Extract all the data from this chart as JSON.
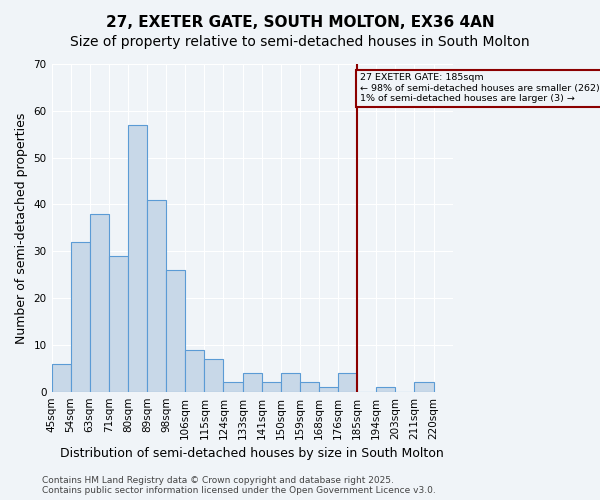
{
  "title": "27, EXETER GATE, SOUTH MOLTON, EX36 4AN",
  "subtitle": "Size of property relative to semi-detached houses in South Molton",
  "xlabel": "Distribution of semi-detached houses by size in South Molton",
  "ylabel": "Number of semi-detached properties",
  "footnote": "Contains HM Land Registry data © Crown copyright and database right 2025.\nContains public sector information licensed under the Open Government Licence v3.0.",
  "bin_labels": [
    "45sqm",
    "54sqm",
    "63sqm",
    "71sqm",
    "80sqm",
    "89sqm",
    "98sqm",
    "106sqm",
    "115sqm",
    "124sqm",
    "133sqm",
    "141sqm",
    "150sqm",
    "159sqm",
    "168sqm",
    "176sqm",
    "185sqm",
    "194sqm",
    "203sqm",
    "211sqm",
    "220sqm"
  ],
  "bar_values": [
    6,
    32,
    38,
    29,
    57,
    41,
    26,
    9,
    7,
    2,
    4,
    2,
    4,
    2,
    1,
    4,
    0,
    1,
    0,
    2
  ],
  "bar_color": "#c8d8e8",
  "bar_edge_color": "#5b9bd5",
  "highlight_line_x_label": "185sqm",
  "highlight_line_color": "#8b0000",
  "annotation_title": "27 EXETER GATE: 185sqm",
  "annotation_line1": "← 98% of semi-detached houses are smaller (262)",
  "annotation_line2": "1% of semi-detached houses are larger (3) →",
  "annotation_box_color": "#8b0000",
  "ylim": [
    0,
    70
  ],
  "yticks": [
    0,
    10,
    20,
    30,
    40,
    50,
    60,
    70
  ],
  "background_color": "#f0f4f8",
  "grid_color": "#ffffff",
  "title_fontsize": 11,
  "subtitle_fontsize": 10,
  "axis_label_fontsize": 9,
  "tick_fontsize": 7.5,
  "footnote_fontsize": 6.5
}
